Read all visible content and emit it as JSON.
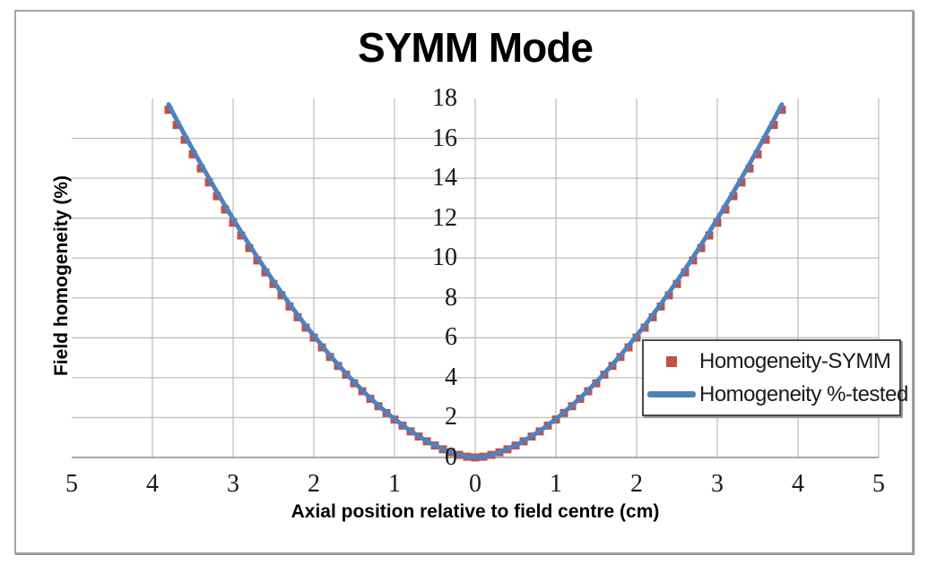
{
  "title": "SYMM Mode",
  "chart_data": {
    "type": "scatter",
    "title": "SYMM Mode",
    "xlabel": "Axial position relative to field centre (cm)",
    "ylabel": "Field homogeneity (%)",
    "x_axis": {
      "tick_labels": [
        "5",
        "4",
        "3",
        "2",
        "1",
        "0",
        "1",
        "2",
        "3",
        "4",
        "5"
      ],
      "tick_values": [
        -5,
        -4,
        -3,
        -2,
        -1,
        0,
        1,
        2,
        3,
        4,
        5
      ],
      "note": "mirrored axis, distances from field centre"
    },
    "y_axis": {
      "ticks": [
        0,
        2,
        4,
        6,
        8,
        10,
        12,
        14,
        16,
        18
      ],
      "ylim": [
        0,
        18
      ],
      "axis_at_x": 0
    },
    "grid": true,
    "legend_position": "inside-right",
    "x": [
      -3.8,
      -3.7,
      -3.6,
      -3.5,
      -3.4,
      -3.3,
      -3.2,
      -3.1,
      -3.0,
      -2.9,
      -2.8,
      -2.7,
      -2.6,
      -2.5,
      -2.4,
      -2.3,
      -2.2,
      -2.1,
      -2.0,
      -1.9,
      -1.8,
      -1.7,
      -1.6,
      -1.5,
      -1.4,
      -1.3,
      -1.2,
      -1.1,
      -1.0,
      -0.9,
      -0.8,
      -0.7,
      -0.6,
      -0.5,
      -0.4,
      -0.3,
      -0.2,
      -0.1,
      0,
      0.1,
      0.2,
      0.3,
      0.4,
      0.5,
      0.6,
      0.7,
      0.8,
      0.9,
      1.0,
      1.1,
      1.2,
      1.3,
      1.4,
      1.5,
      1.6,
      1.7,
      1.8,
      1.9,
      2.0,
      2.1,
      2.2,
      2.3,
      2.4,
      2.5,
      2.6,
      2.7,
      2.8,
      2.9,
      3.0,
      3.1,
      3.2,
      3.3,
      3.4,
      3.5,
      3.6,
      3.7,
      3.8
    ],
    "series": [
      {
        "name": "Homogeneity-SYMM",
        "type": "scatter",
        "marker": "square",
        "color": "#C0504D",
        "values": [
          17.43,
          16.67,
          15.93,
          15.2,
          14.49,
          13.79,
          13.1,
          12.43,
          11.77,
          11.13,
          10.5,
          9.88,
          9.28,
          8.7,
          8.13,
          7.57,
          7.03,
          6.51,
          6.01,
          5.52,
          5.04,
          4.59,
          4.15,
          3.72,
          3.32,
          2.94,
          2.57,
          2.23,
          1.9,
          1.6,
          1.31,
          1.05,
          0.81,
          0.6,
          0.41,
          0.26,
          0.13,
          0.04,
          0.0,
          0.04,
          0.13,
          0.26,
          0.41,
          0.6,
          0.81,
          1.05,
          1.31,
          1.6,
          1.9,
          2.23,
          2.57,
          2.94,
          3.32,
          3.72,
          4.15,
          4.59,
          5.04,
          5.52,
          6.01,
          6.51,
          7.03,
          7.57,
          8.13,
          8.7,
          9.28,
          9.88,
          10.5,
          11.13,
          11.77,
          12.43,
          13.1,
          13.79,
          14.49,
          15.2,
          15.93,
          16.67,
          17.43
        ]
      },
      {
        "name": "Homogeneity %-tested",
        "type": "line",
        "color": "#4F81BD",
        "values": [
          17.7,
          16.93,
          16.18,
          15.44,
          14.72,
          14.01,
          13.31,
          12.63,
          11.96,
          11.31,
          10.67,
          10.04,
          9.43,
          8.84,
          8.26,
          7.69,
          7.15,
          6.61,
          6.11,
          5.61,
          5.12,
          4.66,
          4.21,
          3.78,
          3.37,
          2.98,
          2.61,
          2.26,
          1.93,
          1.62,
          1.33,
          1.07,
          0.82,
          0.61,
          0.42,
          0.26,
          0.13,
          0.04,
          0.0,
          0.04,
          0.13,
          0.26,
          0.42,
          0.61,
          0.82,
          1.07,
          1.33,
          1.62,
          1.93,
          2.26,
          2.61,
          2.98,
          3.37,
          3.78,
          4.21,
          4.66,
          5.12,
          5.61,
          6.11,
          6.61,
          7.15,
          7.69,
          8.26,
          8.84,
          9.43,
          10.04,
          10.67,
          11.31,
          11.96,
          12.63,
          13.31,
          14.01,
          14.72,
          15.44,
          16.18,
          16.93,
          17.7
        ]
      }
    ],
    "colors": {
      "gridline": "#BFBFBF",
      "axis_line": "#8C8C8C",
      "marker": "#C0504D",
      "line": "#4F81BD",
      "text": "#1a1a1a"
    }
  }
}
